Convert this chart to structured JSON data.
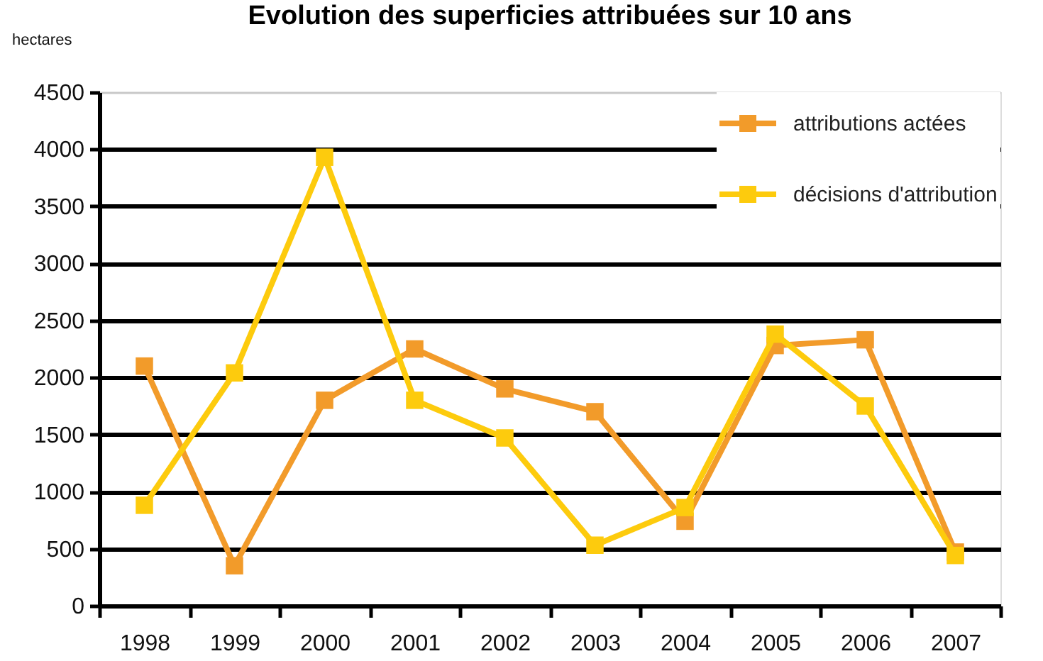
{
  "chart_data": {
    "type": "line",
    "title": "Evolution des superficies attribuées sur 10 ans",
    "ylabel": "hectares",
    "categories": [
      "1998",
      "1999",
      "2000",
      "2001",
      "2002",
      "2003",
      "2004",
      "2005",
      "2006",
      "2007"
    ],
    "series": [
      {
        "name": "attributions actées",
        "color": "#f29b2a",
        "values": [
          2100,
          350,
          1800,
          2250,
          1900,
          1700,
          740,
          2280,
          2330,
          470
        ]
      },
      {
        "name": "décisions d'attribution",
        "color": "#fdcb0d",
        "values": [
          880,
          2040,
          3930,
          1800,
          1470,
          530,
          860,
          2380,
          1750,
          440
        ]
      }
    ],
    "ylim": [
      0,
      4500
    ],
    "yticks": [
      0,
      500,
      1000,
      1500,
      2000,
      2500,
      3000,
      3500,
      4000,
      4500
    ],
    "grid": "y",
    "legend": "top right",
    "marker": "square",
    "line_style": "solid"
  }
}
